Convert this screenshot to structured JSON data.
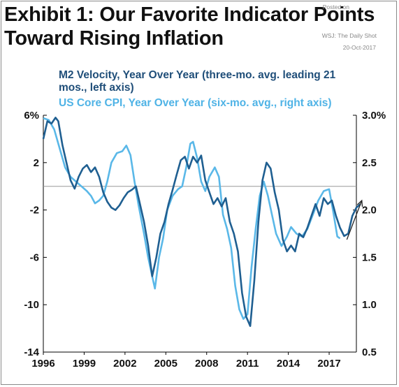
{
  "header": {
    "title_line1": "Exhibit 1: Our Favorite Indicator Points",
    "title_line2": "Toward Rising Inflation"
  },
  "credit": {
    "posted": "Posted on",
    "source": "WSJ: The Daily Shot",
    "date": "20-Oct-2017"
  },
  "chart_data": {
    "type": "line",
    "title": "Exhibit 1: Our Favorite Indicator Points Toward Rising Inflation",
    "x_ticks": [
      "1996",
      "1999",
      "2002",
      "2005",
      "2008",
      "2011",
      "2014",
      "2017"
    ],
    "y_left": {
      "ticks": [
        "6%",
        "2",
        "-2",
        "-6",
        "-10",
        "-14"
      ],
      "values": [
        6,
        2,
        -2,
        -6,
        -10,
        -14
      ],
      "range": [
        -14,
        6
      ]
    },
    "y_right": {
      "ticks": [
        "3.0%",
        "2.5",
        "2.0",
        "1.5",
        "1.0",
        "0.5"
      ],
      "values": [
        3.0,
        2.5,
        2.0,
        1.5,
        1.0,
        0.5
      ],
      "range": [
        0.5,
        3.0
      ]
    },
    "reference_line": 0,
    "xlim": [
      1996.0,
      2019.0
    ],
    "series": [
      {
        "name": "M2 Velocity, Year Over Year (three-mo. avg. leading 21 mos., left axis)",
        "axis": "left",
        "color": "#1f5f91",
        "points": [
          [
            1996.0,
            4.0
          ],
          [
            1996.3,
            5.5
          ],
          [
            1996.6,
            5.3
          ],
          [
            1996.9,
            5.8
          ],
          [
            1997.1,
            5.5
          ],
          [
            1997.4,
            3.5
          ],
          [
            1997.7,
            2.0
          ],
          [
            1998.0,
            0.5
          ],
          [
            1998.3,
            -0.2
          ],
          [
            1998.6,
            0.8
          ],
          [
            1998.9,
            1.5
          ],
          [
            1999.2,
            1.8
          ],
          [
            1999.5,
            1.2
          ],
          [
            1999.8,
            1.6
          ],
          [
            2000.1,
            0.8
          ],
          [
            2000.4,
            -0.5
          ],
          [
            2000.7,
            -1.3
          ],
          [
            2001.0,
            -1.8
          ],
          [
            2001.3,
            -2.0
          ],
          [
            2001.6,
            -1.6
          ],
          [
            2001.9,
            -1.0
          ],
          [
            2002.2,
            -0.5
          ],
          [
            2002.5,
            -0.3
          ],
          [
            2002.8,
            0.0
          ],
          [
            2003.1,
            -1.5
          ],
          [
            2003.4,
            -3.0
          ],
          [
            2003.7,
            -5.0
          ],
          [
            2004.0,
            -7.6
          ],
          [
            2004.3,
            -6.0
          ],
          [
            2004.6,
            -4.0
          ],
          [
            2004.9,
            -3.0
          ],
          [
            2005.2,
            -1.5
          ],
          [
            2005.5,
            -0.3
          ],
          [
            2005.8,
            1.0
          ],
          [
            2006.1,
            2.2
          ],
          [
            2006.4,
            2.5
          ],
          [
            2006.7,
            1.5
          ],
          [
            2007.0,
            2.5
          ],
          [
            2007.3,
            2.0
          ],
          [
            2007.6,
            2.6
          ],
          [
            2007.9,
            0.5
          ],
          [
            2008.2,
            -0.5
          ],
          [
            2008.5,
            -1.5
          ],
          [
            2008.8,
            -1.0
          ],
          [
            2009.1,
            -1.7
          ],
          [
            2009.4,
            -1.0
          ],
          [
            2009.7,
            -3.0
          ],
          [
            2010.0,
            -4.0
          ],
          [
            2010.3,
            -5.5
          ],
          [
            2010.6,
            -9.0
          ],
          [
            2010.9,
            -11.0
          ],
          [
            2011.2,
            -11.8
          ],
          [
            2011.5,
            -8.0
          ],
          [
            2011.8,
            -3.0
          ],
          [
            2012.1,
            0.5
          ],
          [
            2012.4,
            2.0
          ],
          [
            2012.7,
            1.5
          ],
          [
            2013.0,
            -0.5
          ],
          [
            2013.3,
            -2.0
          ],
          [
            2013.6,
            -4.5
          ],
          [
            2013.9,
            -5.5
          ],
          [
            2014.2,
            -5.0
          ],
          [
            2014.5,
            -5.5
          ],
          [
            2014.8,
            -4.0
          ],
          [
            2015.1,
            -4.3
          ],
          [
            2015.4,
            -3.5
          ],
          [
            2015.7,
            -2.5
          ],
          [
            2016.0,
            -1.5
          ],
          [
            2016.3,
            -2.5
          ],
          [
            2016.6,
            -1.0
          ],
          [
            2016.9,
            -1.5
          ],
          [
            2017.2,
            -1.2
          ],
          [
            2017.5,
            -2.5
          ],
          [
            2017.8,
            -3.5
          ],
          [
            2018.1,
            -4.2
          ],
          [
            2018.4,
            -4.0
          ],
          [
            2018.7,
            -2.5
          ],
          [
            2019.0,
            -1.8
          ],
          [
            2019.3,
            -1.5
          ]
        ]
      },
      {
        "name": "US Core CPI, Year Over Year (six-mo. avg., right axis)",
        "axis": "right",
        "color": "#5ab8e8",
        "points": [
          [
            1996.0,
            2.97
          ],
          [
            1996.4,
            2.95
          ],
          [
            1996.8,
            2.85
          ],
          [
            1997.2,
            2.65
          ],
          [
            1997.6,
            2.45
          ],
          [
            1998.0,
            2.35
          ],
          [
            1998.4,
            2.3
          ],
          [
            1998.8,
            2.25
          ],
          [
            1999.2,
            2.2
          ],
          [
            1999.5,
            2.15
          ],
          [
            1999.8,
            2.07
          ],
          [
            2000.1,
            2.1
          ],
          [
            2000.4,
            2.15
          ],
          [
            2000.7,
            2.3
          ],
          [
            2001.0,
            2.5
          ],
          [
            2001.4,
            2.6
          ],
          [
            2001.8,
            2.62
          ],
          [
            2002.1,
            2.68
          ],
          [
            2002.4,
            2.58
          ],
          [
            2002.7,
            2.3
          ],
          [
            2003.0,
            2.05
          ],
          [
            2003.4,
            1.75
          ],
          [
            2003.7,
            1.5
          ],
          [
            2004.0,
            1.3
          ],
          [
            2004.2,
            1.17
          ],
          [
            2004.5,
            1.5
          ],
          [
            2004.8,
            1.7
          ],
          [
            2005.1,
            2.0
          ],
          [
            2005.5,
            2.15
          ],
          [
            2005.9,
            2.22
          ],
          [
            2006.2,
            2.25
          ],
          [
            2006.5,
            2.45
          ],
          [
            2006.8,
            2.7
          ],
          [
            2007.0,
            2.72
          ],
          [
            2007.3,
            2.55
          ],
          [
            2007.6,
            2.3
          ],
          [
            2007.9,
            2.2
          ],
          [
            2008.2,
            2.35
          ],
          [
            2008.6,
            2.45
          ],
          [
            2008.9,
            2.35
          ],
          [
            2009.2,
            1.95
          ],
          [
            2009.5,
            1.8
          ],
          [
            2009.8,
            1.6
          ],
          [
            2010.1,
            1.2
          ],
          [
            2010.4,
            0.95
          ],
          [
            2010.7,
            0.85
          ],
          [
            2011.0,
            0.9
          ],
          [
            2011.3,
            1.4
          ],
          [
            2011.6,
            1.8
          ],
          [
            2011.9,
            2.15
          ],
          [
            2012.2,
            2.3
          ],
          [
            2012.5,
            2.15
          ],
          [
            2012.8,
            1.95
          ],
          [
            2013.1,
            1.75
          ],
          [
            2013.5,
            1.62
          ],
          [
            2013.9,
            1.72
          ],
          [
            2014.2,
            1.82
          ],
          [
            2014.6,
            1.75
          ],
          [
            2015.0,
            1.72
          ],
          [
            2015.4,
            1.8
          ],
          [
            2015.8,
            1.95
          ],
          [
            2016.2,
            2.1
          ],
          [
            2016.6,
            2.2
          ],
          [
            2017.0,
            2.22
          ],
          [
            2017.3,
            1.98
          ],
          [
            2017.6,
            1.72
          ],
          [
            2017.8,
            1.7
          ]
        ]
      }
    ],
    "annotation": "arrow"
  }
}
